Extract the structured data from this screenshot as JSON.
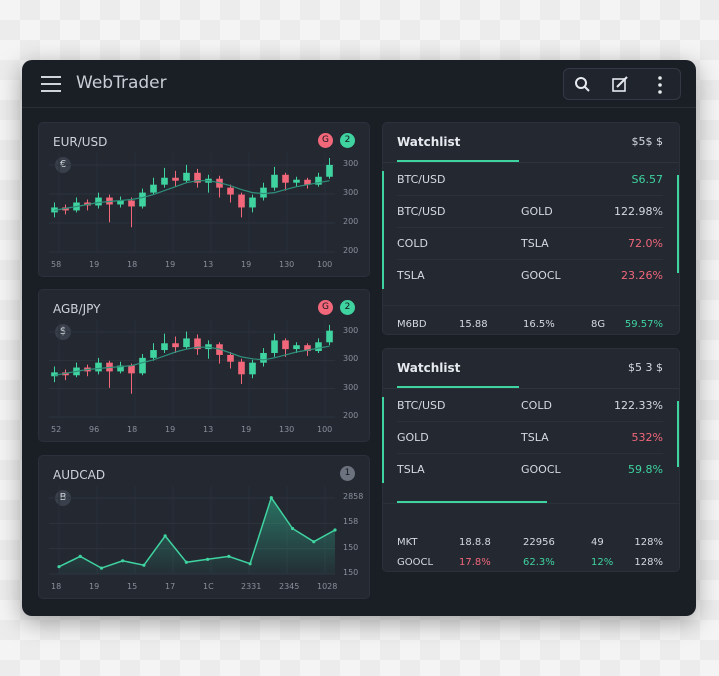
{
  "header": {
    "title": "WebTrader"
  },
  "charts": [
    {
      "type": "candlestick",
      "title": "EUR/USD",
      "icon": "€",
      "badges": [
        {
          "text": "G",
          "tone": "down"
        },
        {
          "text": "2",
          "tone": "up"
        }
      ],
      "ylabels": [
        "300",
        "300",
        "200",
        "200"
      ],
      "xlabels": [
        "58",
        "19",
        "18",
        "19",
        "13",
        "19",
        "130",
        "100"
      ],
      "ylim": [
        0,
        100
      ],
      "candles": [
        [
          40,
          45,
          50,
          35
        ],
        [
          45,
          42,
          48,
          38
        ],
        [
          42,
          50,
          55,
          40
        ],
        [
          50,
          47,
          53,
          42
        ],
        [
          47,
          55,
          60,
          44
        ],
        [
          55,
          48,
          58,
          30
        ],
        [
          48,
          52,
          56,
          45
        ],
        [
          52,
          46,
          55,
          25
        ],
        [
          46,
          60,
          64,
          44
        ],
        [
          60,
          68,
          75,
          58
        ],
        [
          68,
          75,
          85,
          65
        ],
        [
          75,
          72,
          82,
          66
        ],
        [
          72,
          80,
          88,
          70
        ],
        [
          80,
          70,
          84,
          65
        ],
        [
          70,
          74,
          78,
          60
        ],
        [
          74,
          65,
          77,
          55
        ],
        [
          65,
          58,
          68,
          50
        ],
        [
          58,
          45,
          60,
          35
        ],
        [
          45,
          55,
          58,
          40
        ],
        [
          55,
          65,
          70,
          52
        ],
        [
          65,
          78,
          86,
          62
        ],
        [
          78,
          70,
          80,
          62
        ],
        [
          70,
          73,
          76,
          66
        ],
        [
          73,
          68,
          75,
          64
        ],
        [
          68,
          76,
          80,
          66
        ],
        [
          76,
          88,
          95,
          74
        ]
      ],
      "ma": [
        42,
        44,
        46,
        48,
        50,
        51,
        52,
        53,
        55,
        58,
        62,
        66,
        70,
        72,
        72,
        70,
        67,
        63,
        60,
        59,
        60,
        63,
        66,
        68,
        70,
        72
      ]
    },
    {
      "type": "candlestick",
      "title": "AGB/JPY",
      "icon": "$",
      "badges": [
        {
          "text": "G",
          "tone": "down"
        },
        {
          "text": "2",
          "tone": "up"
        }
      ],
      "ylabels": [
        "300",
        "300",
        "300",
        "200"
      ],
      "xlabels": [
        "52",
        "96",
        "18",
        "19",
        "13",
        "19",
        "130",
        "100"
      ],
      "ylim": [
        0,
        100
      ],
      "candles": [
        [
          42,
          46,
          52,
          36
        ],
        [
          46,
          43,
          49,
          38
        ],
        [
          43,
          51,
          56,
          41
        ],
        [
          51,
          47,
          54,
          42
        ],
        [
          47,
          56,
          61,
          44
        ],
        [
          56,
          47,
          58,
          30
        ],
        [
          47,
          53,
          57,
          45
        ],
        [
          53,
          45,
          55,
          24
        ],
        [
          45,
          61,
          65,
          43
        ],
        [
          61,
          69,
          76,
          58
        ],
        [
          69,
          76,
          86,
          66
        ],
        [
          76,
          72,
          83,
          66
        ],
        [
          72,
          81,
          88,
          70
        ],
        [
          81,
          70,
          85,
          64
        ],
        [
          70,
          75,
          79,
          60
        ],
        [
          75,
          64,
          77,
          55
        ],
        [
          64,
          57,
          67,
          50
        ],
        [
          57,
          44,
          60,
          34
        ],
        [
          44,
          56,
          59,
          40
        ],
        [
          56,
          66,
          71,
          52
        ],
        [
          66,
          79,
          86,
          62
        ],
        [
          79,
          70,
          81,
          62
        ],
        [
          70,
          74,
          77,
          66
        ],
        [
          74,
          68,
          76,
          63
        ],
        [
          68,
          77,
          81,
          66
        ],
        [
          77,
          89,
          95,
          74
        ]
      ],
      "ma": [
        43,
        45,
        47,
        49,
        50,
        51,
        52,
        53,
        56,
        59,
        63,
        67,
        70,
        72,
        72,
        70,
        66,
        62,
        60,
        59,
        61,
        64,
        67,
        69,
        71,
        73
      ]
    },
    {
      "type": "area",
      "title": "AUDCAD",
      "icon": "B",
      "badges": [
        {
          "text": "1"
        }
      ],
      "ylabels": [
        "2858",
        "158",
        "150",
        "150"
      ],
      "xlabels": [
        "18",
        "19",
        "15",
        "17",
        "1C",
        "2331",
        "2345",
        "1028"
      ],
      "ylim": [
        0,
        60
      ],
      "values": [
        5,
        12,
        4,
        9,
        6,
        26,
        8,
        10,
        12,
        7,
        52,
        31,
        22,
        30
      ]
    }
  ],
  "watchlists": [
    {
      "title": "Watchlist",
      "summary": "$5$ $",
      "rows": [
        [
          {
            "text": "BTC/USD"
          },
          {
            "text": "S6.57",
            "tone": "up"
          }
        ],
        [
          {
            "text": "BTC/USD"
          },
          {
            "text": "GOLD"
          },
          {
            "text": "122.98%"
          }
        ],
        [
          {
            "text": "COLD"
          },
          {
            "text": "TSLA"
          },
          {
            "text": "72.0%",
            "tone": "down"
          }
        ],
        [
          {
            "text": "TSLA"
          },
          {
            "text": "GOOCL"
          },
          {
            "text": "23.26%",
            "tone": "down"
          }
        ]
      ],
      "footer": [
        [
          {
            "text": "M6BD"
          },
          {
            "text": "15.88"
          },
          {
            "text": "16.5%"
          },
          {
            "text": "8G"
          },
          {
            "text": "59.57%",
            "tone": "up"
          }
        ]
      ]
    },
    {
      "title": "Watchlist",
      "summary": "$5 3 $",
      "rows": [
        [
          {
            "text": "BTC/USD"
          },
          {
            "text": "COLD"
          },
          {
            "text": "122.33%"
          }
        ],
        [
          {
            "text": "GOLD"
          },
          {
            "text": "TSLA"
          },
          {
            "text": "532%",
            "tone": "down"
          }
        ],
        [
          {
            "text": "TSLA"
          },
          {
            "text": "GOOCL"
          },
          {
            "text": "59.8%",
            "tone": "up"
          }
        ]
      ],
      "footer": [
        [
          {
            "text": "MKT"
          },
          {
            "text": "18.8.8"
          },
          {
            "text": "22956"
          },
          {
            "text": "49"
          },
          {
            "text": "128%"
          }
        ],
        [
          {
            "text": "GOOCL"
          },
          {
            "text": "17.8%",
            "tone": "down"
          },
          {
            "text": "62.3%",
            "tone": "up"
          },
          {
            "text": "12%",
            "tone": "up"
          },
          {
            "text": "128%"
          }
        ]
      ]
    }
  ]
}
